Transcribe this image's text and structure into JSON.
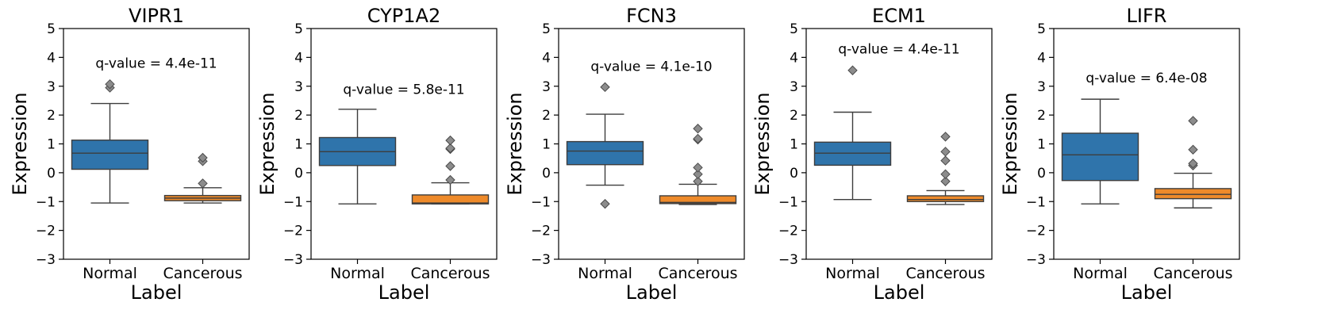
{
  "colors": {
    "normal": "#2f74ab",
    "cancerous": "#ee8a2a"
  },
  "chart_data": [
    {
      "type": "boxplot",
      "title": "VIPR1",
      "xlabel": "Label",
      "ylabel": "Expression",
      "categories": [
        "Normal",
        "Cancerous"
      ],
      "ylim": [
        -3,
        5
      ],
      "yticks": [
        "−3",
        "−2",
        "−1",
        "0",
        "1",
        "2",
        "3",
        "4",
        "5"
      ],
      "annotation": {
        "text": "q-value = 4.4e-11",
        "y": 3.8
      },
      "boxes": [
        {
          "whislo": -1.05,
          "q1": 0.12,
          "med": 0.68,
          "q3": 1.13,
          "whishi": 2.4,
          "fliers": [
            2.95,
            3.07
          ]
        },
        {
          "whislo": -1.05,
          "q1": -0.97,
          "med": -0.88,
          "q3": -0.79,
          "whishi": -0.52,
          "fliers": [
            -0.37,
            0.4,
            0.52
          ]
        }
      ]
    },
    {
      "type": "boxplot",
      "title": "CYP1A2",
      "xlabel": "Label",
      "ylabel": "Expression",
      "categories": [
        "Normal",
        "Cancerous"
      ],
      "ylim": [
        -3,
        5
      ],
      "yticks": [
        "−3",
        "−2",
        "−1",
        "0",
        "1",
        "2",
        "3",
        "4",
        "5"
      ],
      "annotation": {
        "text": "q-value = 5.8e-11",
        "y": 2.9
      },
      "boxes": [
        {
          "whislo": -1.08,
          "q1": 0.25,
          "med": 0.73,
          "q3": 1.22,
          "whishi": 2.2,
          "fliers": []
        },
        {
          "whislo": -1.08,
          "q1": -1.08,
          "med": -1.05,
          "q3": -0.77,
          "whishi": -0.35,
          "fliers": [
            -0.25,
            0.23,
            0.82,
            0.85,
            1.12
          ]
        }
      ]
    },
    {
      "type": "boxplot",
      "title": "FCN3",
      "xlabel": "Label",
      "ylabel": "Expression",
      "categories": [
        "Normal",
        "Cancerous"
      ],
      "ylim": [
        -3,
        5
      ],
      "yticks": [
        "−3",
        "−2",
        "−1",
        "0",
        "1",
        "2",
        "3",
        "4",
        "5"
      ],
      "annotation": {
        "text": "q-value = 4.1e-10",
        "y": 3.7
      },
      "boxes": [
        {
          "whislo": -0.43,
          "q1": 0.28,
          "med": 0.75,
          "q3": 1.08,
          "whishi": 2.03,
          "fliers": [
            -1.08,
            2.97
          ]
        },
        {
          "whislo": -1.1,
          "q1": -1.07,
          "med": -1.03,
          "q3": -0.8,
          "whishi": -0.4,
          "fliers": [
            -0.3,
            -0.05,
            0.18,
            1.15,
            1.18,
            1.53
          ]
        }
      ]
    },
    {
      "type": "boxplot",
      "title": "ECM1",
      "xlabel": "Label",
      "ylabel": "Expression",
      "categories": [
        "Normal",
        "Cancerous"
      ],
      "ylim": [
        -3,
        5
      ],
      "yticks": [
        "−3",
        "−2",
        "−1",
        "0",
        "1",
        "2",
        "3",
        "4",
        "5"
      ],
      "annotation": {
        "text": "q-value = 4.4e-11",
        "y": 4.3
      },
      "boxes": [
        {
          "whislo": -0.93,
          "q1": 0.26,
          "med": 0.68,
          "q3": 1.06,
          "whishi": 2.1,
          "fliers": [
            3.55
          ]
        },
        {
          "whislo": -1.1,
          "q1": -1.0,
          "med": -0.93,
          "q3": -0.8,
          "whishi": -0.62,
          "fliers": [
            -0.3,
            -0.05,
            0.42,
            0.73,
            1.25
          ]
        }
      ]
    },
    {
      "type": "boxplot",
      "title": "LIFR",
      "xlabel": "Label",
      "ylabel": "Expression",
      "categories": [
        "Normal",
        "Cancerous"
      ],
      "ylim": [
        -3,
        5
      ],
      "yticks": [
        "−3",
        "−2",
        "−1",
        "0",
        "1",
        "2",
        "3",
        "4",
        "5"
      ],
      "annotation": {
        "text": "q-value = 6.4e-08",
        "y": 3.3
      },
      "boxes": [
        {
          "whislo": -1.08,
          "q1": -0.27,
          "med": 0.62,
          "q3": 1.37,
          "whishi": 2.55,
          "fliers": []
        },
        {
          "whislo": -1.22,
          "q1": -0.9,
          "med": -0.75,
          "q3": -0.55,
          "whishi": -0.02,
          "fliers": [
            0.25,
            0.32,
            0.8,
            1.8
          ]
        }
      ]
    }
  ]
}
